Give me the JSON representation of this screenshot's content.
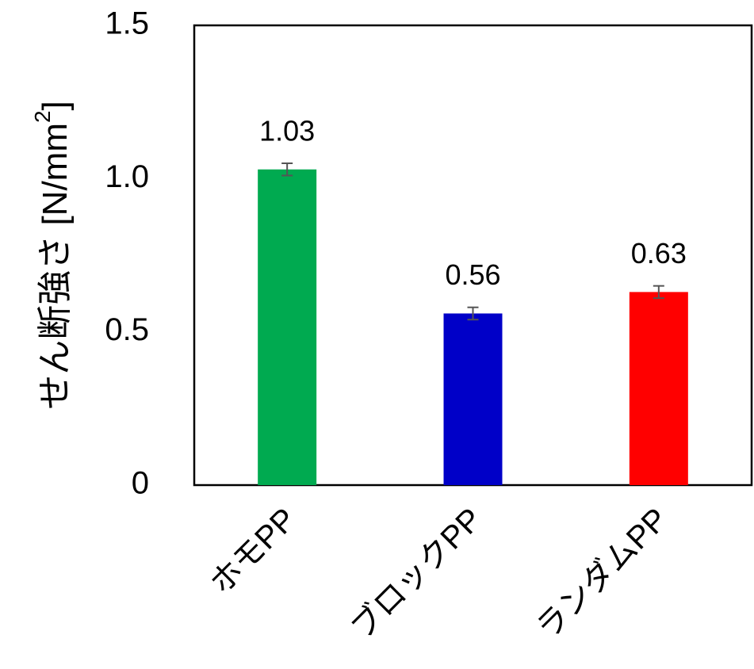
{
  "chart_data": {
    "type": "bar",
    "categories": [
      "ホモPP",
      "ブロックPP",
      "ランダムPP"
    ],
    "values": [
      1.03,
      0.56,
      0.63
    ],
    "errors": [
      0.02,
      0.02,
      0.02
    ],
    "value_labels": [
      "1.03",
      "0.56",
      "0.63"
    ],
    "colors": [
      "#00AA50",
      "#0000C8",
      "#FF0000"
    ],
    "error_bar_color": "#555555",
    "ylabel": "せん断強さ [N/mm",
    "ylabel_sup": "2",
    "ylabel_close": "]",
    "ylim": [
      0,
      1.5
    ],
    "yticks": [
      {
        "value": 0,
        "label": "0"
      },
      {
        "value": 0.5,
        "label": "0.5"
      },
      {
        "value": 1.0,
        "label": "1.0"
      },
      {
        "value": 1.5,
        "label": "1.5"
      }
    ],
    "grid": false,
    "legend": "none"
  }
}
